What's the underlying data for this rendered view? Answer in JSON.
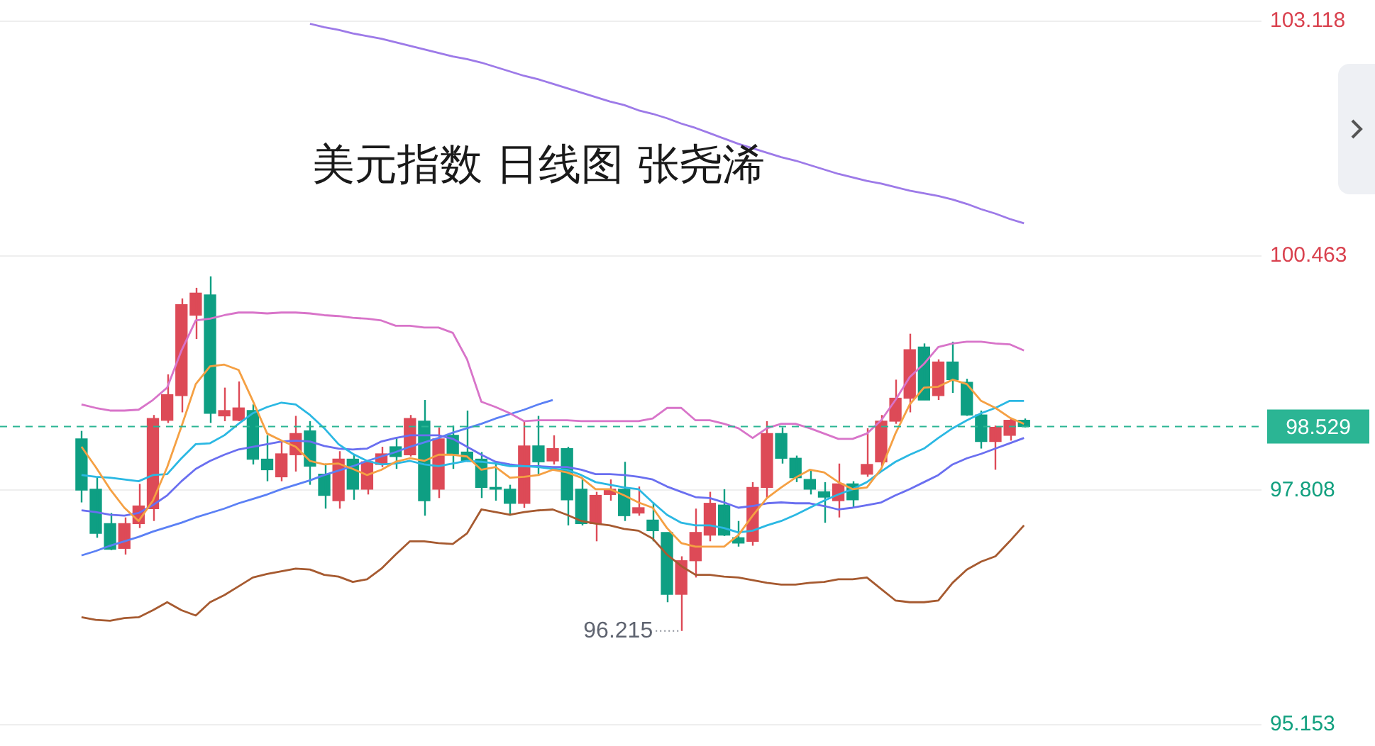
{
  "chart_data": {
    "type": "candlestick",
    "title": "美元指数 日线图 张尧浠",
    "categories": [
      null,
      null,
      null,
      null,
      null,
      null,
      null,
      null,
      null,
      null,
      null,
      null,
      null,
      null,
      null,
      null,
      null,
      null,
      null,
      null,
      null,
      null,
      null,
      null,
      null,
      null,
      null,
      null,
      null,
      null,
      null,
      null,
      null,
      null,
      null,
      null,
      null,
      null,
      null,
      null,
      null,
      null,
      null,
      null,
      null,
      null,
      null,
      null,
      null,
      null,
      null,
      null,
      null,
      null,
      null,
      null,
      null,
      null,
      null,
      null,
      null,
      null,
      null,
      null,
      null,
      null,
      null
    ],
    "ohlc": [
      [
        98.39,
        98.48,
        97.67,
        97.81
      ],
      [
        97.82,
        97.96,
        97.27,
        97.32
      ],
      [
        97.43,
        97.55,
        97.13,
        97.14
      ],
      [
        97.15,
        97.5,
        97.08,
        97.43
      ],
      [
        97.43,
        97.88,
        97.38,
        97.63
      ],
      [
        97.6,
        98.66,
        97.46,
        98.62
      ],
      [
        98.6,
        99.12,
        98.57,
        98.89
      ],
      [
        98.88,
        99.98,
        98.69,
        99.91
      ],
      [
        99.79,
        100.1,
        99.52,
        100.04
      ],
      [
        100.02,
        100.23,
        98.57,
        98.68
      ],
      [
        98.65,
        98.97,
        98.59,
        98.71
      ],
      [
        98.6,
        99.04,
        98.59,
        98.74
      ],
      [
        98.71,
        98.78,
        98.1,
        98.16
      ],
      [
        98.16,
        98.43,
        97.91,
        98.04
      ],
      [
        97.96,
        98.37,
        97.91,
        98.22
      ],
      [
        98.21,
        98.65,
        98.02,
        98.45
      ],
      [
        98.48,
        98.59,
        97.87,
        98.08
      ],
      [
        97.99,
        98.11,
        97.6,
        97.75
      ],
      [
        97.69,
        98.25,
        97.6,
        98.16
      ],
      [
        98.16,
        98.22,
        97.7,
        97.82
      ],
      [
        97.82,
        98.14,
        97.76,
        98.13
      ],
      [
        98.1,
        98.3,
        98.07,
        98.22
      ],
      [
        98.3,
        98.4,
        98.05,
        98.19
      ],
      [
        98.21,
        98.66,
        98.19,
        98.62
      ],
      [
        98.59,
        98.83,
        97.52,
        97.69
      ],
      [
        97.82,
        98.52,
        97.72,
        98.39
      ],
      [
        98.43,
        98.54,
        98.05,
        98.22
      ],
      [
        98.24,
        98.71,
        98.13,
        98.14
      ],
      [
        98.16,
        98.24,
        97.72,
        97.84
      ],
      [
        97.84,
        98.13,
        97.69,
        97.82
      ],
      [
        97.82,
        97.87,
        97.52,
        97.66
      ],
      [
        97.66,
        98.59,
        97.61,
        98.31
      ],
      [
        98.31,
        98.65,
        97.99,
        98.13
      ],
      [
        98.14,
        98.43,
        98.1,
        98.28
      ],
      [
        98.28,
        98.3,
        97.41,
        97.7
      ],
      [
        97.82,
        97.95,
        97.41,
        97.43
      ],
      [
        97.43,
        97.79,
        97.23,
        97.75
      ],
      [
        97.76,
        97.93,
        97.69,
        97.82
      ],
      [
        97.82,
        98.13,
        97.46,
        97.52
      ],
      [
        97.55,
        97.85,
        97.52,
        97.61
      ],
      [
        97.47,
        97.67,
        97.23,
        97.35
      ],
      [
        97.33,
        97.33,
        96.54,
        96.63
      ],
      [
        96.63,
        97.06,
        96.215,
        97.01
      ],
      [
        97.01,
        97.6,
        96.82,
        97.33
      ],
      [
        97.3,
        97.79,
        97.23,
        97.66
      ],
      [
        97.64,
        97.82,
        97.29,
        97.3
      ],
      [
        97.27,
        97.46,
        97.17,
        97.21
      ],
      [
        97.23,
        97.9,
        97.18,
        97.84
      ],
      [
        97.84,
        98.59,
        97.72,
        98.45
      ],
      [
        98.45,
        98.52,
        98.11,
        98.17
      ],
      [
        98.17,
        98.2,
        97.9,
        97.95
      ],
      [
        97.93,
        98.04,
        97.76,
        97.82
      ],
      [
        97.79,
        97.9,
        97.44,
        97.73
      ],
      [
        97.69,
        98.11,
        97.5,
        97.88
      ],
      [
        97.88,
        97.91,
        97.61,
        97.7
      ],
      [
        97.99,
        98.51,
        97.96,
        98.1
      ],
      [
        98.13,
        98.66,
        98.08,
        98.59
      ],
      [
        98.59,
        99.06,
        98.56,
        98.85
      ],
      [
        98.85,
        99.58,
        98.69,
        99.4
      ],
      [
        99.43,
        99.47,
        98.83,
        98.83
      ],
      [
        98.88,
        99.29,
        98.83,
        99.26
      ],
      [
        99.26,
        99.49,
        98.91,
        99.06
      ],
      [
        99.03,
        99.07,
        98.65,
        98.66
      ],
      [
        98.66,
        98.71,
        98.28,
        98.36
      ],
      [
        98.36,
        98.54,
        98.04,
        98.52
      ],
      [
        98.43,
        98.62,
        98.37,
        98.6
      ],
      [
        98.6,
        98.62,
        98.52,
        98.529
      ]
    ],
    "colors": [
      "#0e9f83",
      "#0e9f83",
      "#0e9f83",
      "#dd4a57",
      "#dd4a57",
      "#dd4a57",
      "#dd4a57",
      "#dd4a57",
      "#dd4a57",
      "#0e9f83",
      "#dd4a57",
      "#dd4a57",
      "#0e9f83",
      "#0e9f83",
      "#dd4a57",
      "#dd4a57",
      "#0e9f83",
      "#0e9f83",
      "#dd4a57",
      "#0e9f83",
      "#dd4a57",
      "#dd4a57",
      "#0e9f83",
      "#dd4a57",
      "#0e9f83",
      "#dd4a57",
      "#0e9f83",
      "#0e9f83",
      "#0e9f83",
      "#0e9f83",
      "#0e9f83",
      "#dd4a57",
      "#0e9f83",
      "#dd4a57",
      "#0e9f83",
      "#0e9f83",
      "#dd4a57",
      "#dd4a57",
      "#0e9f83",
      "#dd4a57",
      "#0e9f83",
      "#0e9f83",
      "#dd4a57",
      "#dd4a57",
      "#dd4a57",
      "#0e9f83",
      "#0e9f83",
      "#dd4a57",
      "#dd4a57",
      "#0e9f83",
      "#0e9f83",
      "#0e9f83",
      "#0e9f83",
      "#dd4a57",
      "#0e9f83",
      "#dd4a57",
      "#dd4a57",
      "#dd4a57",
      "#dd4a57",
      "#0e9f83",
      "#dd4a57",
      "#0e9f83",
      "#0e9f83",
      "#0e9f83",
      "#dd4a57",
      "#dd4a57",
      "#0e9f83"
    ],
    "series": [
      {
        "type": "line",
        "color": "#f5a043",
        "values": [
          98.3,
          98.07,
          97.82,
          97.61,
          97.46,
          97.69,
          98.07,
          98.53,
          99.01,
          99.21,
          99.23,
          99.17,
          98.82,
          98.45,
          98.37,
          98.3,
          98.14,
          98.1,
          98.11,
          98.05,
          97.98,
          98.04,
          98.13,
          98.17,
          98.14,
          98.21,
          98.21,
          98.19,
          98.04,
          98.07,
          97.95,
          97.96,
          97.98,
          98.04,
          98.01,
          97.95,
          97.82,
          97.82,
          97.75,
          97.67,
          97.61,
          97.38,
          97.21,
          97.17,
          97.17,
          97.17,
          97.3,
          97.52,
          97.72,
          97.84,
          97.95,
          98.04,
          98.01,
          97.9,
          97.82,
          97.84,
          98.05,
          98.45,
          98.78,
          98.97,
          98.98,
          99.06,
          99.01,
          98.82,
          98.74,
          98.63,
          98.56
        ]
      },
      {
        "type": "line",
        "color": "#2bb8e3",
        "values": [
          97.98,
          97.96,
          97.95,
          97.93,
          97.91,
          97.98,
          97.99,
          98.17,
          98.33,
          98.34,
          98.43,
          98.56,
          98.68,
          98.75,
          98.8,
          98.78,
          98.66,
          98.51,
          98.33,
          98.22,
          98.14,
          98.1,
          98.11,
          98.14,
          98.1,
          98.08,
          98.11,
          98.14,
          98.13,
          98.11,
          98.08,
          98.08,
          98.07,
          98.05,
          98.04,
          97.98,
          97.9,
          97.87,
          97.84,
          97.82,
          97.67,
          97.53,
          97.44,
          97.41,
          97.41,
          97.38,
          97.33,
          97.35,
          97.41,
          97.46,
          97.53,
          97.61,
          97.69,
          97.76,
          97.82,
          97.9,
          98.02,
          98.13,
          98.21,
          98.28,
          98.4,
          98.51,
          98.6,
          98.68,
          98.74,
          98.82,
          98.82
        ]
      },
      {
        "type": "line",
        "color": "#6a6ff0",
        "values": [
          97.58,
          97.56,
          97.53,
          97.52,
          97.55,
          97.64,
          97.75,
          97.91,
          98.05,
          98.14,
          98.21,
          98.27,
          98.3,
          98.33,
          98.36,
          98.37,
          98.36,
          98.31,
          98.28,
          98.27,
          98.28,
          98.36,
          98.4,
          98.43,
          98.43,
          98.43,
          98.39,
          98.3,
          98.21,
          98.13,
          98.1,
          98.08,
          98.08,
          98.07,
          98.07,
          98.04,
          97.99,
          97.99,
          97.98,
          97.96,
          97.93,
          97.85,
          97.79,
          97.73,
          97.72,
          97.67,
          97.61,
          97.63,
          97.66,
          97.67,
          97.66,
          97.66,
          97.63,
          97.59,
          97.61,
          97.64,
          97.67,
          97.75,
          97.82,
          97.9,
          97.98,
          98.1,
          98.17,
          98.22,
          98.28,
          98.34,
          98.4
        ]
      },
      {
        "type": "line",
        "color": "#9d7ae8",
        "values": [
          null,
          null,
          null,
          null,
          null,
          null,
          null,
          null,
          null,
          null,
          null,
          null,
          null,
          null,
          null,
          null,
          103.09,
          103.05,
          103.02,
          102.98,
          102.95,
          102.92,
          102.88,
          102.84,
          102.8,
          102.76,
          102.72,
          102.69,
          102.65,
          102.6,
          102.55,
          102.5,
          102.46,
          102.41,
          102.36,
          102.31,
          102.26,
          102.21,
          102.17,
          102.11,
          102.07,
          102.02,
          101.96,
          101.91,
          101.85,
          101.79,
          101.73,
          101.68,
          101.63,
          101.58,
          101.54,
          101.49,
          101.44,
          101.39,
          101.35,
          101.31,
          101.28,
          101.24,
          101.2,
          101.17,
          101.14,
          101.1,
          101.05,
          100.99,
          100.94,
          100.88,
          100.83
        ]
      },
      {
        "type": "line",
        "color": "#d874c9",
        "values": [
          98.78,
          98.74,
          98.71,
          98.71,
          98.72,
          98.83,
          98.97,
          99.39,
          99.73,
          99.75,
          99.79,
          99.82,
          99.82,
          99.81,
          99.82,
          99.82,
          99.81,
          99.79,
          99.78,
          99.76,
          99.75,
          99.73,
          99.67,
          99.67,
          99.65,
          99.65,
          99.59,
          99.29,
          98.81,
          98.75,
          98.68,
          98.59,
          98.6,
          98.6,
          98.6,
          98.59,
          98.59,
          98.59,
          98.59,
          98.59,
          98.62,
          98.74,
          98.74,
          98.6,
          98.6,
          98.56,
          98.51,
          98.4,
          98.51,
          98.56,
          98.56,
          98.51,
          98.45,
          98.39,
          98.39,
          98.45,
          98.6,
          98.83,
          99.09,
          99.24,
          99.43,
          99.47,
          99.49,
          99.49,
          99.47,
          99.46,
          99.39
        ]
      },
      {
        "type": "line",
        "color": "#a65a30",
        "values": [
          96.37,
          96.34,
          96.33,
          96.36,
          96.37,
          96.45,
          96.54,
          96.45,
          96.39,
          96.54,
          96.62,
          96.72,
          96.82,
          96.86,
          96.89,
          96.92,
          96.91,
          96.85,
          96.83,
          96.77,
          96.8,
          96.92,
          97.08,
          97.23,
          97.23,
          97.21,
          97.2,
          97.32,
          97.59,
          97.56,
          97.53,
          97.56,
          97.58,
          97.59,
          97.53,
          97.46,
          97.43,
          97.41,
          97.37,
          97.35,
          97.26,
          97.08,
          96.95,
          96.85,
          96.85,
          96.83,
          96.82,
          96.79,
          96.76,
          96.74,
          96.74,
          96.76,
          96.77,
          96.8,
          96.8,
          96.82,
          96.69,
          96.56,
          96.54,
          96.54,
          96.56,
          96.76,
          96.91,
          97.0,
          97.06,
          97.23,
          97.41
        ]
      },
      {
        "type": "line",
        "color": "#5b80f5",
        "values": [
          97.07,
          97.12,
          97.18,
          97.23,
          97.28,
          97.34,
          97.39,
          97.44,
          97.5,
          97.55,
          97.6,
          97.66,
          97.71,
          97.76,
          97.82,
          97.87,
          97.92,
          97.98,
          98.03,
          98.08,
          98.14,
          98.19,
          98.24,
          98.3,
          98.35,
          98.4,
          98.46,
          98.51,
          98.56,
          98.62,
          98.67,
          98.72,
          98.78,
          98.83,
          null,
          null,
          null,
          null,
          null,
          null,
          null,
          null,
          null,
          null,
          null,
          null,
          null,
          null,
          null,
          null,
          null,
          null,
          null,
          null,
          null,
          null,
          null,
          null,
          null,
          null,
          null,
          null,
          null,
          null,
          null,
          null,
          null
        ]
      }
    ],
    "ylim": [
      95.153,
      103.118
    ],
    "yticks": [
      103.118,
      100.463,
      97.808,
      95.153
    ],
    "grid": "y",
    "marker": "none",
    "line_style": "solid",
    "ref_lines": [
      {
        "axis": "y",
        "value": 98.529,
        "label": "98.529",
        "color": "#2bb594",
        "line_style": "dashed"
      }
    ],
    "annotations": [
      "96.215"
    ]
  }
}
